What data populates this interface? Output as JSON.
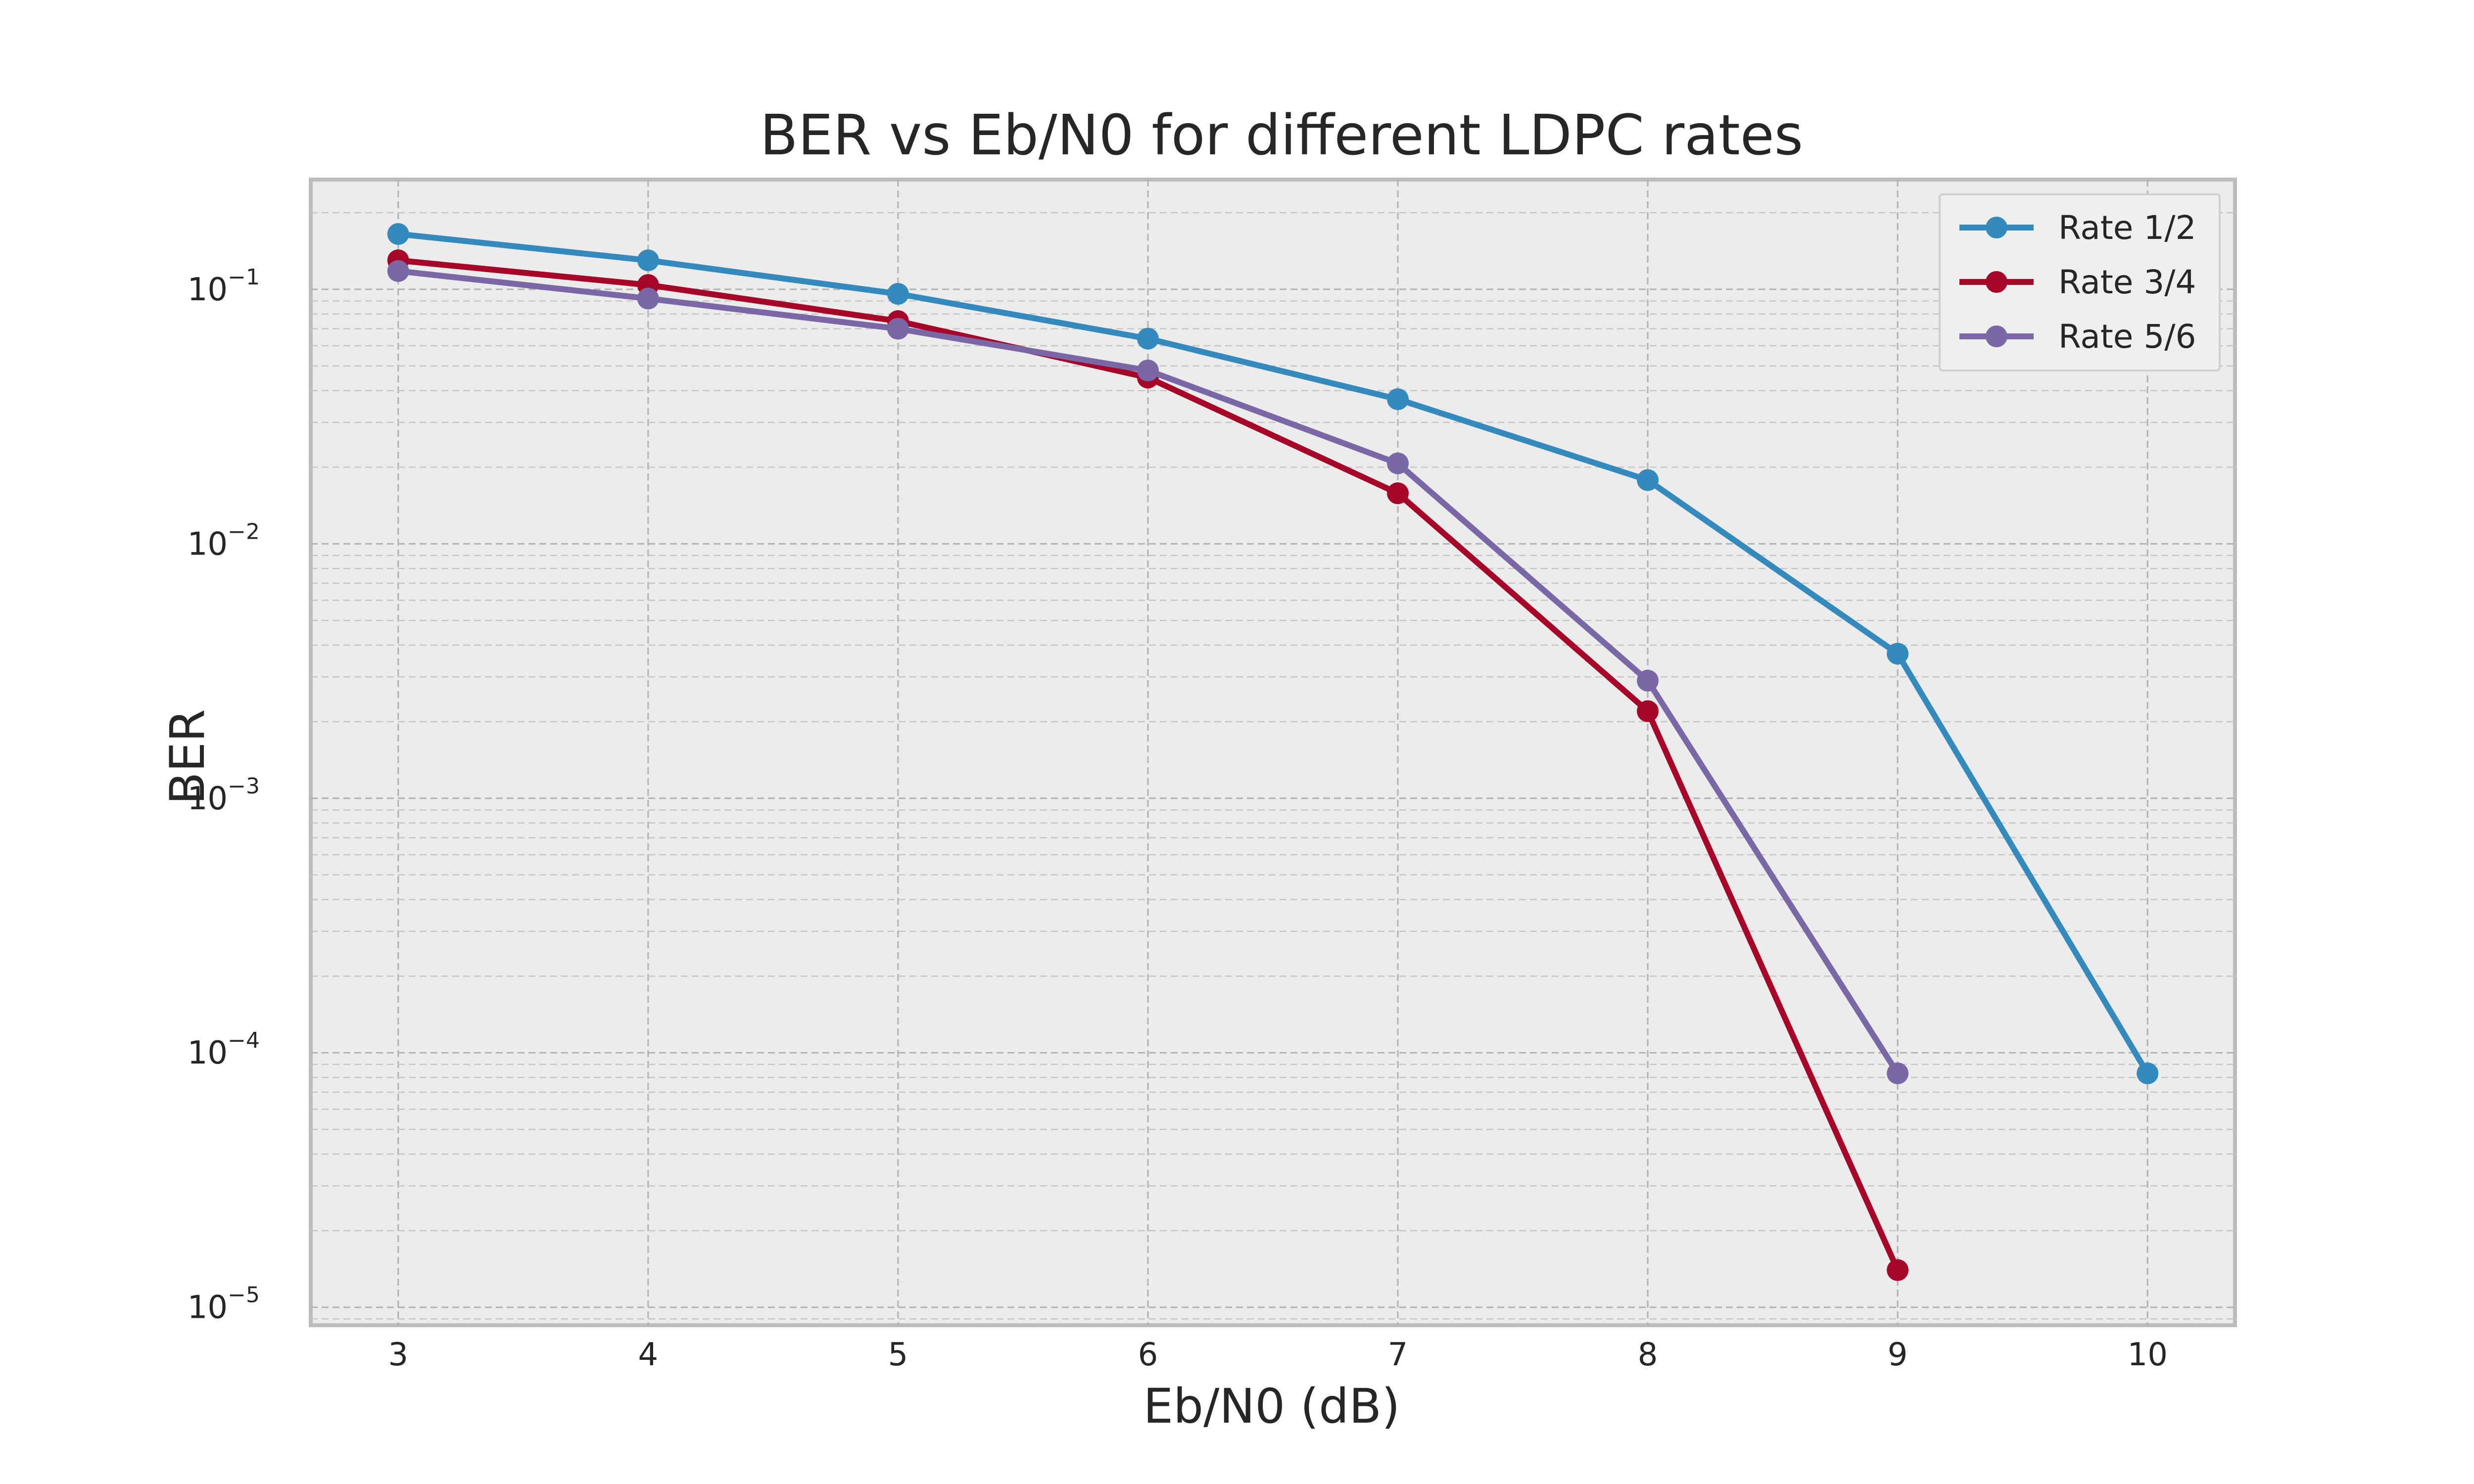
{
  "chart_data": {
    "type": "line",
    "title": "BER vs Eb/N0 for different LDPC rates",
    "xlabel": "Eb/N0 (dB)",
    "ylabel": "BER",
    "xlim": [
      2.65,
      10.35
    ],
    "ylim": [
      8.5e-06,
      0.27
    ],
    "yscale": "log",
    "grid": true,
    "legend": "top-right",
    "x_ticks": [
      {
        "value": 3,
        "label": "3"
      },
      {
        "value": 4,
        "label": "4"
      },
      {
        "value": 5,
        "label": "5"
      },
      {
        "value": 6,
        "label": "6"
      },
      {
        "value": 7,
        "label": "7"
      },
      {
        "value": 8,
        "label": "8"
      },
      {
        "value": 9,
        "label": "9"
      },
      {
        "value": 10,
        "label": "10"
      }
    ],
    "y_ticks": [
      {
        "value": 1e-05,
        "base": "10",
        "exp": "−5"
      },
      {
        "value": 0.0001,
        "base": "10",
        "exp": "−4"
      },
      {
        "value": 0.001,
        "base": "10",
        "exp": "−3"
      },
      {
        "value": 0.01,
        "base": "10",
        "exp": "−2"
      },
      {
        "value": 0.1,
        "base": "10",
        "exp": "−1"
      }
    ],
    "series": [
      {
        "name": "Rate 1/2",
        "color": "#348abd",
        "x": [
          3,
          4,
          5,
          6,
          7,
          8,
          9,
          10
        ],
        "y": [
          0.165,
          0.13,
          0.096,
          0.064,
          0.037,
          0.0178,
          0.0037,
          8.3e-05
        ]
      },
      {
        "name": "Rate 3/4",
        "color": "#a60628",
        "x": [
          3,
          4,
          5,
          6,
          7,
          8,
          9
        ],
        "y": [
          0.13,
          0.104,
          0.075,
          0.045,
          0.0158,
          0.0022,
          1.4e-05
        ]
      },
      {
        "name": "Rate 5/6",
        "color": "#7a68a6",
        "x": [
          3,
          4,
          5,
          6,
          7,
          8,
          9
        ],
        "y": [
          0.118,
          0.092,
          0.07,
          0.048,
          0.0207,
          0.0029,
          8.3e-05
        ]
      }
    ]
  }
}
